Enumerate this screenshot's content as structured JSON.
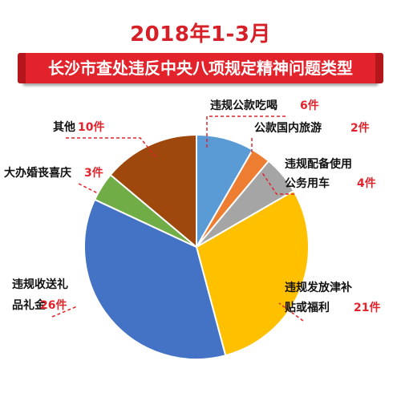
{
  "header": {
    "year_line": "2018年1-3月",
    "banner": "长沙市查处违反中央八项规定精神问题类型"
  },
  "colors": {
    "accent": "#e2232b",
    "leader": "#e2232b"
  },
  "chart_data": {
    "type": "pie",
    "start_angle_deg": 0,
    "direction": "clockwise",
    "slices": [
      {
        "key": "dining",
        "label_lines": [
          "违规公款吃喝"
        ],
        "count": "6件",
        "value": 6,
        "color": "#5b9bd5"
      },
      {
        "key": "travel",
        "label_lines": [
          "公款国内旅游"
        ],
        "count": "2件",
        "value": 2,
        "color": "#ed7d31"
      },
      {
        "key": "car",
        "label_lines": [
          "违规配备使用",
          "公务用车"
        ],
        "count": "4件",
        "value": 4,
        "color": "#a5a5a5"
      },
      {
        "key": "subsidy",
        "label_lines": [
          "违规发放津补",
          "贴或福利"
        ],
        "count": "21件",
        "value": 21,
        "color": "#ffc000"
      },
      {
        "key": "gifts",
        "label_lines": [
          "违规收送礼",
          "品礼金"
        ],
        "count": "26件",
        "value": 26,
        "color": "#4472c4"
      },
      {
        "key": "wedding",
        "label_lines": [
          "大办婚丧喜庆"
        ],
        "count": "3件",
        "value": 3,
        "color": "#70ad47"
      },
      {
        "key": "other",
        "label_lines": [
          "其他"
        ],
        "count": "10件",
        "value": 10,
        "color": "#9e480e"
      }
    ]
  }
}
